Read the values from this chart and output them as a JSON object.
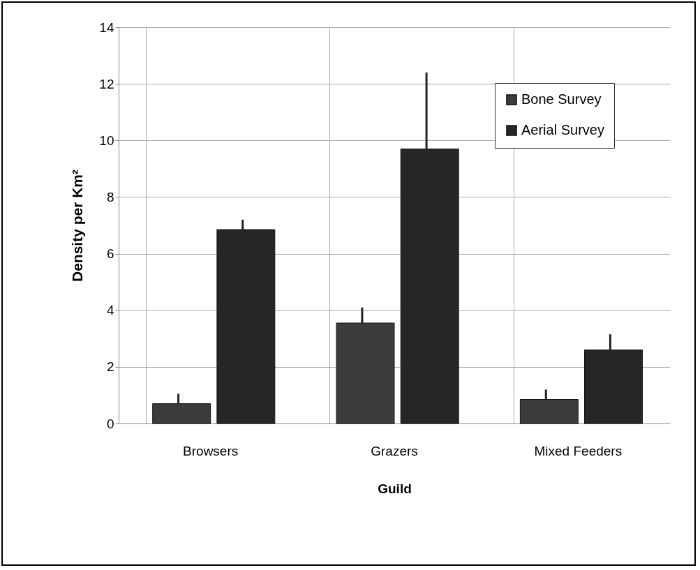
{
  "chart_data": {
    "type": "bar",
    "xlabel": "Guild",
    "ylabel": "Density per Km²",
    "categories": [
      "Browsers",
      "Grazers",
      "Mixed Feeders"
    ],
    "series": [
      {
        "name": "Bone Survey",
        "color": "#3c3c3c",
        "values": [
          0.7,
          3.55,
          0.85
        ],
        "errors": [
          [
            0.7,
            1.05
          ],
          [
            3.55,
            4.1
          ],
          [
            0.85,
            1.2
          ]
        ]
      },
      {
        "name": "Aerial Survey",
        "color": "#262626",
        "values": [
          6.85,
          9.7,
          2.6
        ],
        "errors": [
          [
            6.85,
            7.2
          ],
          [
            9.7,
            12.4
          ],
          [
            2.6,
            3.15
          ]
        ]
      }
    ],
    "ylim": [
      0,
      14
    ],
    "yticks": [
      0,
      2,
      4,
      6,
      8,
      10,
      12,
      14
    ],
    "grid": true,
    "legend": "top right"
  }
}
